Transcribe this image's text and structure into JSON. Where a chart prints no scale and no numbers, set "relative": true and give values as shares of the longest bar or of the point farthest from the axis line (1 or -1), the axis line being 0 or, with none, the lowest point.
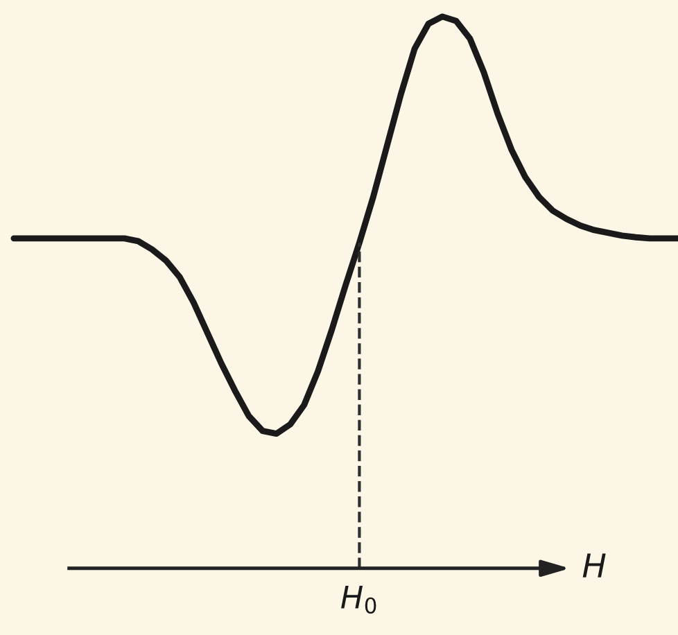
{
  "chart_data": {
    "type": "line",
    "relative": true,
    "xlabel": "H",
    "color": "#1a1a1a",
    "categories": [
      null,
      null,
      null,
      null,
      null,
      null,
      null,
      null,
      null,
      null,
      null,
      null,
      null,
      null,
      null,
      null,
      null,
      null,
      null,
      null,
      null,
      null,
      null,
      null,
      null,
      null,
      null,
      null,
      null,
      null,
      null,
      null,
      null,
      null,
      null,
      null,
      null,
      null,
      null,
      null,
      null,
      null,
      null,
      null,
      null,
      null,
      null,
      null,
      null
    ],
    "values": [
      0.598,
      0.598,
      0.598,
      0.598,
      0.598,
      0.598,
      0.598,
      0.598,
      0.598,
      0.593,
      0.578,
      0.558,
      0.528,
      0.482,
      0.427,
      0.372,
      0.322,
      0.276,
      0.249,
      0.244,
      0.261,
      0.296,
      0.357,
      0.432,
      0.513,
      0.59,
      0.673,
      0.766,
      0.859,
      0.942,
      0.987,
      1.0,
      0.992,
      0.96,
      0.899,
      0.824,
      0.759,
      0.709,
      0.673,
      0.648,
      0.633,
      0.621,
      0.613,
      0.608,
      0.603,
      0.6,
      0.598,
      0.598,
      0.598
    ],
    "annotations": [
      "H$_{0}$"
    ]
  }
}
